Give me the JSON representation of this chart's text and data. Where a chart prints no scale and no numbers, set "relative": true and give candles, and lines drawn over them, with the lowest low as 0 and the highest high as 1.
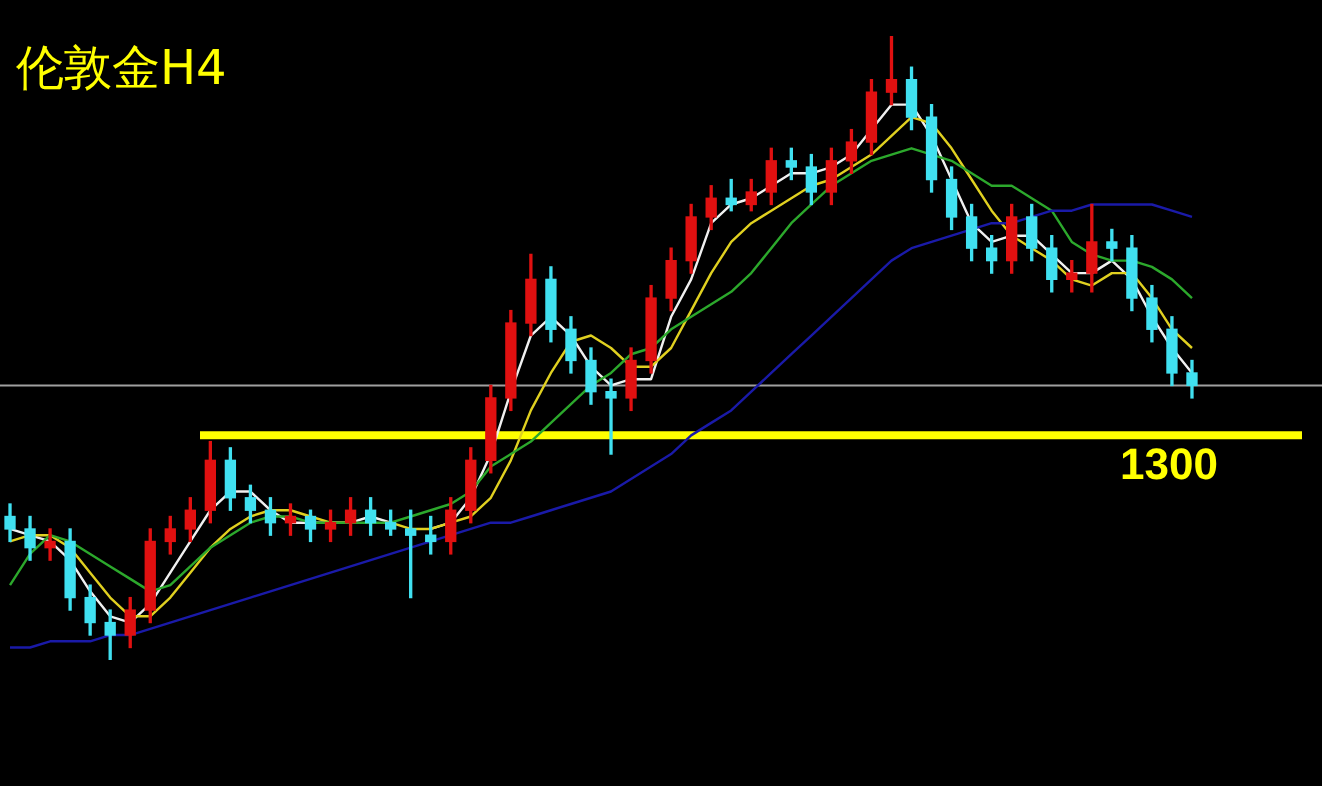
{
  "chart_data": {
    "type": "candlestick",
    "title": "伦敦金H4",
    "relative": true,
    "tick_labels": false,
    "categories": [
      null,
      null,
      null,
      null,
      null,
      null,
      null,
      null,
      null,
      null,
      null,
      null,
      null,
      null,
      null,
      null,
      null,
      null,
      null,
      null,
      null,
      null,
      null,
      null,
      null,
      null,
      null,
      null,
      null,
      null,
      null,
      null,
      null,
      null,
      null,
      null,
      null,
      null,
      null,
      null,
      null,
      null,
      null,
      null,
      null,
      null,
      null,
      null,
      null,
      null,
      null,
      null,
      null,
      null,
      null,
      null,
      null,
      null,
      null,
      null
    ],
    "ohlc": [
      [
        0.23,
        0.25,
        0.19,
        0.21
      ],
      [
        0.21,
        0.23,
        0.16,
        0.18
      ],
      [
        0.18,
        0.21,
        0.16,
        0.19
      ],
      [
        0.19,
        0.21,
        0.08,
        0.1
      ],
      [
        0.1,
        0.12,
        0.04,
        0.06
      ],
      [
        0.06,
        0.08,
        0,
        0.04
      ],
      [
        0.04,
        0.1,
        0.02,
        0.08
      ],
      [
        0.08,
        0.21,
        0.06,
        0.19
      ],
      [
        0.19,
        0.23,
        0.17,
        0.21
      ],
      [
        0.21,
        0.26,
        0.19,
        0.24
      ],
      [
        0.24,
        0.35,
        0.22,
        0.32
      ],
      [
        0.32,
        0.34,
        0.24,
        0.26
      ],
      [
        0.26,
        0.28,
        0.22,
        0.24
      ],
      [
        0.24,
        0.26,
        0.2,
        0.22
      ],
      [
        0.22,
        0.25,
        0.2,
        0.23
      ],
      [
        0.23,
        0.24,
        0.19,
        0.21
      ],
      [
        0.21,
        0.24,
        0.19,
        0.22
      ],
      [
        0.22,
        0.26,
        0.2,
        0.24
      ],
      [
        0.24,
        0.26,
        0.2,
        0.22
      ],
      [
        0.22,
        0.24,
        0.2,
        0.21
      ],
      [
        0.21,
        0.24,
        0.1,
        0.2
      ],
      [
        0.2,
        0.23,
        0.17,
        0.19
      ],
      [
        0.19,
        0.26,
        0.17,
        0.24
      ],
      [
        0.24,
        0.34,
        0.22,
        0.32
      ],
      [
        0.32,
        0.44,
        0.3,
        0.42
      ],
      [
        0.42,
        0.56,
        0.4,
        0.54
      ],
      [
        0.54,
        0.65,
        0.52,
        0.61
      ],
      [
        0.61,
        0.63,
        0.51,
        0.53
      ],
      [
        0.53,
        0.55,
        0.46,
        0.48
      ],
      [
        0.48,
        0.5,
        0.41,
        0.43
      ],
      [
        0.43,
        0.45,
        0.33,
        0.42
      ],
      [
        0.42,
        0.5,
        0.4,
        0.48
      ],
      [
        0.48,
        0.6,
        0.46,
        0.58
      ],
      [
        0.58,
        0.66,
        0.56,
        0.64
      ],
      [
        0.64,
        0.73,
        0.62,
        0.71
      ],
      [
        0.71,
        0.76,
        0.69,
        0.74
      ],
      [
        0.74,
        0.77,
        0.72,
        0.73
      ],
      [
        0.73,
        0.77,
        0.72,
        0.75
      ],
      [
        0.75,
        0.82,
        0.73,
        0.8
      ],
      [
        0.8,
        0.82,
        0.77,
        0.79
      ],
      [
        0.79,
        0.81,
        0.73,
        0.75
      ],
      [
        0.75,
        0.82,
        0.73,
        0.8
      ],
      [
        0.8,
        0.85,
        0.78,
        0.83
      ],
      [
        0.83,
        0.93,
        0.81,
        0.91
      ],
      [
        0.91,
        1,
        0.89,
        0.93
      ],
      [
        0.93,
        0.95,
        0.85,
        0.87
      ],
      [
        0.87,
        0.89,
        0.75,
        0.77
      ],
      [
        0.77,
        0.79,
        0.69,
        0.71
      ],
      [
        0.71,
        0.73,
        0.64,
        0.66
      ],
      [
        0.66,
        0.68,
        0.62,
        0.64
      ],
      [
        0.64,
        0.73,
        0.62,
        0.71
      ],
      [
        0.71,
        0.73,
        0.64,
        0.66
      ],
      [
        0.66,
        0.68,
        0.59,
        0.61
      ],
      [
        0.61,
        0.64,
        0.59,
        0.62
      ],
      [
        0.62,
        0.73,
        0.59,
        0.67
      ],
      [
        0.67,
        0.69,
        0.64,
        0.66
      ],
      [
        0.66,
        0.68,
        0.56,
        0.58
      ],
      [
        0.58,
        0.6,
        0.51,
        0.53
      ],
      [
        0.53,
        0.55,
        0.44,
        0.46
      ],
      [
        0.46,
        0.48,
        0.42,
        0.44
      ]
    ],
    "colors": [
      "#40e0f0",
      "#40e0f0",
      "#e01010",
      "#40e0f0",
      "#40e0f0",
      "#40e0f0",
      "#e01010",
      "#e01010",
      "#e01010",
      "#e01010",
      "#e01010",
      "#40e0f0",
      "#40e0f0",
      "#40e0f0",
      "#e01010",
      "#40e0f0",
      "#e01010",
      "#e01010",
      "#40e0f0",
      "#40e0f0",
      "#40e0f0",
      "#40e0f0",
      "#e01010",
      "#e01010",
      "#e01010",
      "#e01010",
      "#e01010",
      "#40e0f0",
      "#40e0f0",
      "#40e0f0",
      "#40e0f0",
      "#e01010",
      "#e01010",
      "#e01010",
      "#e01010",
      "#e01010",
      "#40e0f0",
      "#e01010",
      "#e01010",
      "#40e0f0",
      "#40e0f0",
      "#e01010",
      "#e01010",
      "#e01010",
      "#e01010",
      "#40e0f0",
      "#40e0f0",
      "#40e0f0",
      "#40e0f0",
      "#40e0f0",
      "#e01010",
      "#40e0f0",
      "#40e0f0",
      "#e01010",
      "#e01010",
      "#40e0f0",
      "#40e0f0",
      "#40e0f0",
      "#40e0f0",
      "#40e0f0"
    ],
    "series": [
      {
        "type": "line",
        "color": "#1a1aa8",
        "values": [
          0.02,
          0.02,
          0.03,
          0.03,
          0.03,
          0.04,
          0.04,
          0.05,
          0.06,
          0.07,
          0.08,
          0.09,
          0.1,
          0.11,
          0.12,
          0.13,
          0.14,
          0.15,
          0.16,
          0.17,
          0.18,
          0.19,
          0.2,
          0.21,
          0.22,
          0.22,
          0.23,
          0.24,
          0.25,
          0.26,
          0.27,
          0.29,
          0.31,
          0.33,
          0.36,
          0.38,
          0.4,
          0.43,
          0.46,
          0.49,
          0.52,
          0.55,
          0.58,
          0.61,
          0.64,
          0.66,
          0.67,
          0.68,
          0.69,
          0.7,
          0.7,
          0.71,
          0.72,
          0.72,
          0.73,
          0.73,
          0.73,
          0.73,
          0.72,
          0.71
        ]
      },
      {
        "type": "line",
        "color": "#2ca82c",
        "values": [
          0.12,
          0.17,
          0.2,
          0.19,
          0.17,
          0.15,
          0.13,
          0.11,
          0.12,
          0.15,
          0.18,
          0.2,
          0.22,
          0.23,
          0.23,
          0.22,
          0.22,
          0.22,
          0.22,
          0.22,
          0.23,
          0.24,
          0.25,
          0.27,
          0.31,
          0.33,
          0.35,
          0.38,
          0.41,
          0.44,
          0.46,
          0.49,
          0.5,
          0.53,
          0.55,
          0.57,
          0.59,
          0.62,
          0.66,
          0.7,
          0.73,
          0.76,
          0.78,
          0.8,
          0.81,
          0.82,
          0.81,
          0.8,
          0.78,
          0.76,
          0.76,
          0.74,
          0.72,
          0.67,
          0.65,
          0.64,
          0.64,
          0.63,
          0.61,
          0.58
        ]
      },
      {
        "type": "line",
        "color": "#e0d020",
        "values": [
          0.19,
          0.2,
          0.2,
          0.18,
          0.14,
          0.1,
          0.07,
          0.07,
          0.1,
          0.14,
          0.18,
          0.21,
          0.23,
          0.24,
          0.24,
          0.23,
          0.22,
          0.22,
          null,
          0.22,
          0.21,
          0.21,
          0.22,
          0.23,
          0.26,
          0.32,
          0.4,
          0.46,
          0.51,
          0.52,
          0.5,
          0.47,
          0.47,
          0.5,
          0.56,
          0.62,
          0.67,
          0.7,
          0.72,
          0.74,
          0.76,
          0.77,
          0.79,
          0.81,
          0.84,
          0.87,
          0.86,
          0.82,
          0.77,
          0.72,
          0.68,
          0.66,
          0.64,
          0.61,
          0.6,
          0.62,
          0.62,
          0.58,
          0.53,
          0.5
        ]
      },
      {
        "type": "line",
        "color": "#f0f0f0",
        "values": [
          0.21,
          0.2,
          0.19,
          0.16,
          0.11,
          0.07,
          0.06,
          0.09,
          0.14,
          0.19,
          0.24,
          0.27,
          0.27,
          0.24,
          0.22,
          0.22,
          0.22,
          0.22,
          0.23,
          0.22,
          null,
          0.21,
          0.22,
          0.26,
          0.33,
          0.43,
          0.52,
          0.55,
          0.52,
          0.47,
          0.44,
          0.45,
          0.45,
          0.55,
          0.61,
          0.7,
          0.73,
          0.74,
          0.76,
          0.78,
          0.78,
          0.79,
          0.81,
          0.85,
          0.89,
          0.89,
          0.84,
          0.77,
          0.7,
          0.67,
          0.68,
          0.68,
          0.65,
          0.62,
          0.62,
          0.64,
          0.61,
          0.55,
          0.5,
          0.46
        ]
      }
    ],
    "annotations": [
      "1300"
    ],
    "ref_lines": [
      {
        "axis": "y",
        "value": 0.36,
        "color": "#ffff00"
      },
      {
        "axis": "y",
        "value": 0.44,
        "color": "#a0a0a0"
      }
    ]
  }
}
